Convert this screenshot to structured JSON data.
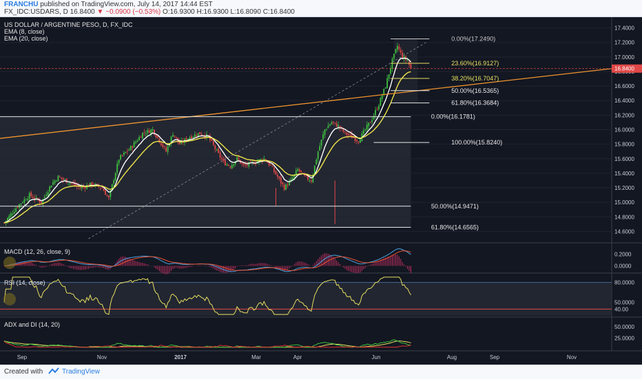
{
  "header": {
    "user": "FRANCHU",
    "published": "published on TradingView.com, July 14, 2017 14:44 EST",
    "symbol_line": "FX_IDC:USDARS, D",
    "last": "16.8400",
    "change": "▼ −0.0900 (−0.53%)",
    "ohlc": "O:16.9300 H:16.9300 L:16.8090 C:16.8400"
  },
  "footer": {
    "created": "Created with",
    "brand": "TradingView"
  },
  "colors": {
    "bg": "#131722",
    "bull": "#3fbf3f",
    "bear": "#e04848",
    "ema8": "#ffffff",
    "ema20": "#f0e64a",
    "trend": "#f0952e",
    "fib": "#e8e8e8",
    "fib_yellow": "#e8e060",
    "price_line": "#e04848",
    "macd": "#4aa3e0",
    "signal": "#f05030",
    "rsi": "#e8e060",
    "adx": "#e8e060",
    "diplus": "#3fbf3f",
    "diminus": "#e03030"
  },
  "chart_data": [
    {
      "type": "candlestick",
      "title": "US DOLLAR / ARGENTINE PESO, D, FX_IDC",
      "series_labels": [
        "EMA (8, close)",
        "EMA (20, close)"
      ],
      "x_ticks": [
        "Sep",
        "Nov",
        "2017",
        "Mar",
        "Apr",
        "Jun",
        "Aug",
        "Sep",
        "Nov"
      ],
      "y_ticks": [
        14.6,
        14.8,
        15.0,
        15.2,
        15.4,
        15.6,
        15.8,
        16.0,
        16.2,
        16.4,
        16.6,
        16.8,
        17.0,
        17.2,
        17.4
      ],
      "ylim": [
        14.5,
        17.5
      ],
      "last_price": 16.84,
      "last_price_label": "16.8400",
      "close_path": [
        [
          0,
          14.72
        ],
        [
          8,
          14.95
        ],
        [
          15,
          15.1
        ],
        [
          22,
          15.0
        ],
        [
          28,
          15.25
        ],
        [
          32,
          15.35
        ],
        [
          38,
          15.28
        ],
        [
          45,
          15.2
        ],
        [
          52,
          15.25
        ],
        [
          58,
          15.2
        ],
        [
          62,
          15.05
        ],
        [
          68,
          15.6
        ],
        [
          75,
          15.75
        ],
        [
          82,
          15.95
        ],
        [
          88,
          16.0
        ],
        [
          92,
          15.85
        ],
        [
          96,
          15.7
        ],
        [
          100,
          15.95
        ],
        [
          104,
          15.8
        ],
        [
          110,
          15.9
        ],
        [
          116,
          15.95
        ],
        [
          121,
          15.9
        ],
        [
          126,
          15.7
        ],
        [
          130,
          15.55
        ],
        [
          134,
          15.5
        ],
        [
          138,
          15.6
        ],
        [
          142,
          15.5
        ],
        [
          148,
          15.55
        ],
        [
          154,
          15.6
        ],
        [
          158,
          15.5
        ],
        [
          162,
          15.35
        ],
        [
          166,
          15.2
        ],
        [
          170,
          15.3
        ],
        [
          174,
          15.45
        ],
        [
          178,
          15.35
        ],
        [
          182,
          15.3
        ],
        [
          186,
          15.7
        ],
        [
          190,
          16.0
        ],
        [
          194,
          16.1
        ],
        [
          198,
          16.05
        ],
        [
          202,
          15.95
        ],
        [
          206,
          15.9
        ],
        [
          210,
          15.85
        ],
        [
          214,
          16.0
        ],
        [
          218,
          16.15
        ],
        [
          222,
          16.35
        ],
        [
          226,
          16.6
        ],
        [
          230,
          16.95
        ],
        [
          233,
          17.15
        ],
        [
          236,
          17.0
        ],
        [
          239,
          16.95
        ],
        [
          241,
          16.84
        ]
      ],
      "trendline": {
        "from": [
          0,
          15.88
        ],
        "to": [
          320,
          16.84
        ]
      },
      "fib_retracements": [
        {
          "label": "0.00%(17.2490)",
          "value": 17.249
        },
        {
          "label": "23.60%(16.9127)",
          "value": 16.9127
        },
        {
          "label": "38.20%(16.7047)",
          "value": 16.7047
        },
        {
          "label": "50.00%(16.5365)",
          "value": 16.5365
        },
        {
          "label": "61.80%(16.3684)",
          "value": 16.3684
        },
        {
          "label": "0.00%(16.1781)",
          "value": 16.1781
        },
        {
          "label": "100.00%(15.8240)",
          "value": 15.824
        },
        {
          "label": "50.00%(14.9471)",
          "value": 14.9471
        },
        {
          "label": "61.80%(14.6565)",
          "value": 14.6565
        }
      ]
    },
    {
      "type": "line",
      "title": "MACD (12, 26, close, 9)",
      "y_ticks": [
        0.0,
        0.2
      ],
      "y_tick_labels": [
        "0.0000",
        "0.2000"
      ]
    },
    {
      "type": "line",
      "title": "RSI (14, close)",
      "y_ticks": [
        40,
        50,
        80
      ],
      "y_tick_labels": [
        "40.00",
        "50.0000",
        "80.0000"
      ]
    },
    {
      "type": "line",
      "title": "ADX and DI (14, 20)",
      "y_ticks": [
        25,
        50
      ],
      "y_tick_labels": [
        "25.0000",
        "50.0000"
      ]
    }
  ]
}
